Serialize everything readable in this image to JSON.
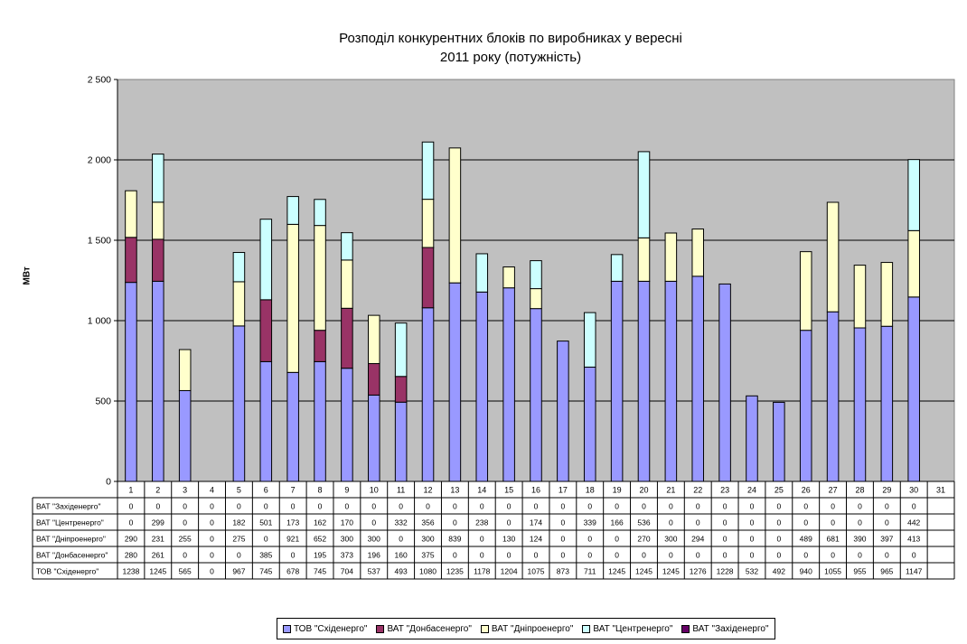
{
  "chart_data": {
    "type": "bar",
    "stacked": true,
    "title_lines": [
      "Розподіл конкурентних блоків по виробниках у вересні",
      "2011 року (потужність)"
    ],
    "ylabel": "МВт",
    "xlabel": "",
    "ylim": [
      0,
      2500
    ],
    "yticks": [
      0,
      500,
      1000,
      1500,
      2000,
      2500
    ],
    "ytick_labels": [
      "0",
      "500",
      "1 000",
      "1 500",
      "2 000",
      "2 500"
    ],
    "grid": true,
    "legend_position": "bottom",
    "categories": [
      "1",
      "2",
      "3",
      "4",
      "5",
      "6",
      "7",
      "8",
      "9",
      "10",
      "11",
      "12",
      "13",
      "14",
      "15",
      "16",
      "17",
      "18",
      "19",
      "20",
      "21",
      "22",
      "23",
      "24",
      "25",
      "26",
      "27",
      "28",
      "29",
      "30",
      "31"
    ],
    "series": [
      {
        "name": "ТОВ \"Східенерго\"",
        "color": "#9999ff",
        "values": [
          1238,
          1245,
          565,
          0,
          967,
          745,
          678,
          745,
          704,
          537,
          493,
          1080,
          1235,
          1178,
          1204,
          1075,
          873,
          711,
          1245,
          1245,
          1245,
          1276,
          1228,
          532,
          492,
          940,
          1055,
          955,
          965,
          1147,
          null
        ]
      },
      {
        "name": "ВАТ \"Донбасенерго\"",
        "color": "#993366",
        "values": [
          280,
          261,
          0,
          0,
          0,
          385,
          0,
          195,
          373,
          196,
          160,
          375,
          0,
          0,
          0,
          0,
          0,
          0,
          0,
          0,
          0,
          0,
          0,
          0,
          0,
          0,
          0,
          0,
          0,
          0,
          null
        ]
      },
      {
        "name": "ВАТ \"Дніпроенерго\"",
        "color": "#ffffcc",
        "values": [
          290,
          231,
          255,
          0,
          275,
          0,
          921,
          652,
          300,
          300,
          0,
          300,
          839,
          0,
          130,
          124,
          0,
          0,
          0,
          270,
          300,
          294,
          0,
          0,
          0,
          489,
          681,
          390,
          397,
          413,
          null
        ]
      },
      {
        "name": "ВАТ \"Центренерго\"",
        "color": "#ccffff",
        "values": [
          0,
          299,
          0,
          0,
          182,
          501,
          173,
          162,
          170,
          0,
          332,
          356,
          0,
          238,
          0,
          174,
          0,
          339,
          166,
          536,
          0,
          0,
          0,
          0,
          0,
          0,
          0,
          0,
          0,
          442,
          null
        ]
      },
      {
        "name": "ВАТ \"Західенерго\"",
        "color": "#660066",
        "values": [
          0,
          0,
          0,
          0,
          0,
          0,
          0,
          0,
          0,
          0,
          0,
          0,
          0,
          0,
          0,
          0,
          0,
          0,
          0,
          0,
          0,
          0,
          0,
          0,
          0,
          0,
          0,
          0,
          0,
          0,
          null
        ]
      }
    ],
    "table_row_order": [
      4,
      3,
      2,
      1,
      0
    ]
  }
}
